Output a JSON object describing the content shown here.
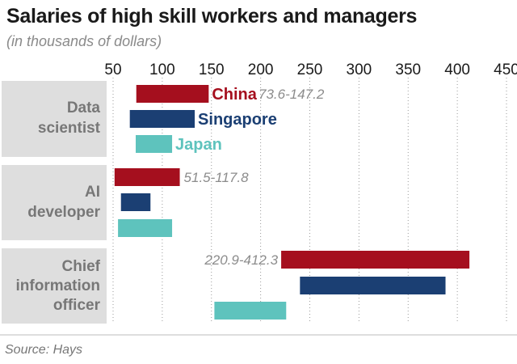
{
  "title": "Salaries of high skill workers and managers",
  "subtitle": "(in thousands of dollars)",
  "source": "Source: Hays",
  "colors": {
    "China": "#a50f1e",
    "Singapore": "#1b3f73",
    "Japan": "#5ec3bd",
    "group_bg": "#dedede",
    "label_text": "#777777",
    "range_text": "#8c8c8c"
  },
  "chart_data": {
    "type": "bar",
    "orientation": "horizontal-range",
    "xlim": [
      50,
      450
    ],
    "x_ticks": [
      50,
      100,
      150,
      200,
      250,
      300,
      350,
      400,
      450
    ],
    "grid": true,
    "categories": [
      "Data scientist",
      "AI developer",
      "Chief information officer"
    ],
    "series": [
      {
        "name": "China",
        "ranges": [
          [
            73.6,
            147.2
          ],
          [
            51.5,
            117.8
          ],
          [
            220.9,
            412.3
          ]
        ],
        "range_labels": [
          "73.6-147.2",
          "51.5-117.8",
          "220.9-412.3"
        ]
      },
      {
        "name": "Singapore",
        "ranges": [
          [
            67,
            133
          ],
          [
            58,
            88
          ],
          [
            240,
            388
          ]
        ]
      },
      {
        "name": "Japan",
        "ranges": [
          [
            73,
            110
          ],
          [
            55,
            110
          ],
          [
            153,
            226
          ]
        ]
      }
    ],
    "legend_placement": "inline next to Data scientist bars"
  }
}
